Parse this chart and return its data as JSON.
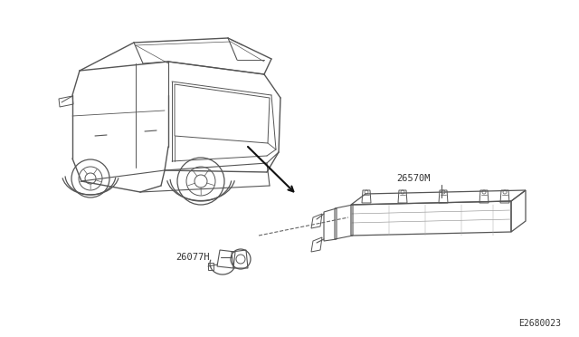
{
  "background_color": "#ffffff",
  "fig_width": 6.4,
  "fig_height": 3.72,
  "dpi": 100,
  "label_26570M": "26570M",
  "label_26077H": "26077H",
  "label_diagram_id": "E2680023",
  "line_color": "#555555",
  "text_color": "#333333",
  "dashed_color": "#666666",
  "xlim": [
    0,
    640
  ],
  "ylim": [
    0,
    372
  ],
  "fontsize_label": 7.5,
  "fontsize_id": 7.0
}
